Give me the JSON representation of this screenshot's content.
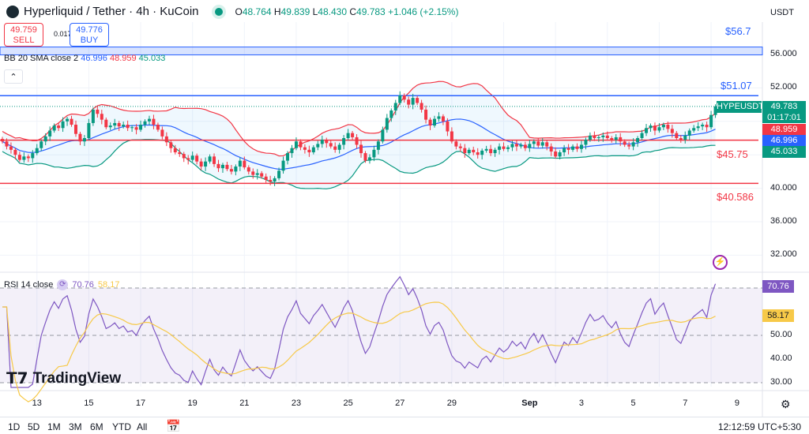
{
  "header": {
    "title": "Hyperliquid / Tether · 4h · KuCoin",
    "open_label": "O",
    "open": "48.764",
    "high_label": "H",
    "high": "49.839",
    "low_label": "L",
    "low": "48.430",
    "close_label": "C",
    "close": "49.783",
    "change": "+1.046 (+2.15%)",
    "currency": "USDT"
  },
  "trade": {
    "sell_price": "49.759",
    "sell_label": "SELL",
    "spread": "0.017",
    "buy_price": "49.776",
    "buy_label": "BUY"
  },
  "bb": {
    "label": "BB 20 SMA close 2",
    "basis": "46.996",
    "upper": "48.959",
    "lower": "45.033"
  },
  "rsi": {
    "label": "RSI 14 close",
    "value": "70.76",
    "ma": "58.17"
  },
  "watermark": "TradingView",
  "price_axis": {
    "ticks": [
      "56.000",
      "52.000",
      "40.000",
      "36.000",
      "32.000"
    ],
    "symbol_badge": "HYPEUSDT",
    "last": "49.783",
    "countdown": "01:17:01"
  },
  "rsi_axis": {
    "ticks": [
      "50.00",
      "40.00",
      "30.00"
    ]
  },
  "levels": [
    {
      "label": "$56.7",
      "value": 56.7,
      "color": "#2962ff"
    },
    {
      "label": "$51.07",
      "value": 51.07,
      "color": "#2962ff"
    },
    {
      "label": "$45.75",
      "value": 45.75,
      "color": "#f23645"
    },
    {
      "label": "$40.586",
      "value": 40.586,
      "color": "#f23645"
    }
  ],
  "x_labels": [
    "13",
    "15",
    "17",
    "19",
    "21",
    "23",
    "25",
    "27",
    "29",
    "Sep",
    "3",
    "5",
    "7",
    "9"
  ],
  "ranges": [
    "1D",
    "5D",
    "1M",
    "3M",
    "6M",
    "YTD",
    "All"
  ],
  "clock": "12:12:59 UTC+5:30",
  "colors": {
    "up": "#089981",
    "down": "#f23645",
    "bb_basis": "#2962ff",
    "bb_upper": "#f23645",
    "bb_lower": "#089981",
    "rsi": "#7e57c2",
    "rsi_ma": "#f7c948"
  },
  "chart_data": {
    "type": "candlestick",
    "interval": "4h",
    "symbol": "HYPEUSDT",
    "ylim": [
      30,
      58
    ],
    "rsi_ylim": [
      28,
      78
    ],
    "indicators": [
      "BB 20 SMA close 2",
      "RSI 14 close"
    ],
    "close": [
      45.6,
      45.0,
      44.6,
      44.0,
      43.4,
      43.8,
      43.6,
      44.2,
      44.8,
      45.6,
      46.2,
      46.9,
      47.5,
      47.2,
      48.0,
      48.3,
      47.6,
      46.5,
      45.6,
      46.0,
      47.8,
      49.4,
      48.9,
      48.2,
      47.3,
      47.5,
      47.8,
      47.4,
      47.6,
      47.2,
      47.3,
      47.0,
      47.6,
      48.0,
      48.3,
      47.6,
      47.0,
      46.2,
      45.5,
      44.8,
      44.3,
      44.1,
      43.6,
      43.4,
      43.9,
      43.2,
      42.6,
      43.2,
      43.8,
      42.9,
      42.4,
      42.8,
      42.3,
      42.0,
      42.6,
      43.3,
      42.5,
      42.0,
      41.6,
      41.8,
      41.4,
      41.0,
      40.8,
      41.2,
      42.1,
      43.3,
      44.2,
      44.8,
      45.6,
      44.9,
      44.6,
      44.3,
      44.9,
      45.3,
      45.8,
      45.4,
      45.0,
      44.6,
      45.2,
      46.0,
      46.6,
      46.1,
      45.2,
      44.2,
      43.3,
      43.7,
      44.6,
      45.6,
      47.0,
      48.4,
      49.3,
      50.2,
      51.1,
      50.6,
      50.0,
      50.8,
      50.2,
      49.4,
      48.2,
      47.5,
      48.3,
      48.6,
      48.0,
      46.8,
      45.6,
      45.0,
      44.8,
      44.2,
      44.6,
      44.3,
      44.0,
      44.5,
      44.7,
      44.2,
      44.6,
      45.0,
      44.7,
      44.9,
      45.3,
      45.0,
      45.2,
      44.8,
      45.3,
      45.6,
      45.1,
      45.5,
      45.0,
      44.4,
      43.8,
      44.3,
      44.8,
      44.6,
      45.0,
      44.7,
      45.2,
      45.8,
      46.3,
      46.0,
      46.1,
      46.3,
      46.0,
      45.8,
      46.1,
      45.6,
      45.2,
      45.0,
      45.5,
      46.0,
      46.6,
      47.2,
      47.5,
      46.9,
      47.3,
      47.6,
      47.1,
      46.6,
      46.0,
      45.8,
      46.3,
      46.9,
      47.2,
      47.4,
      47.6,
      47.3,
      48.764,
      49.783
    ]
  }
}
